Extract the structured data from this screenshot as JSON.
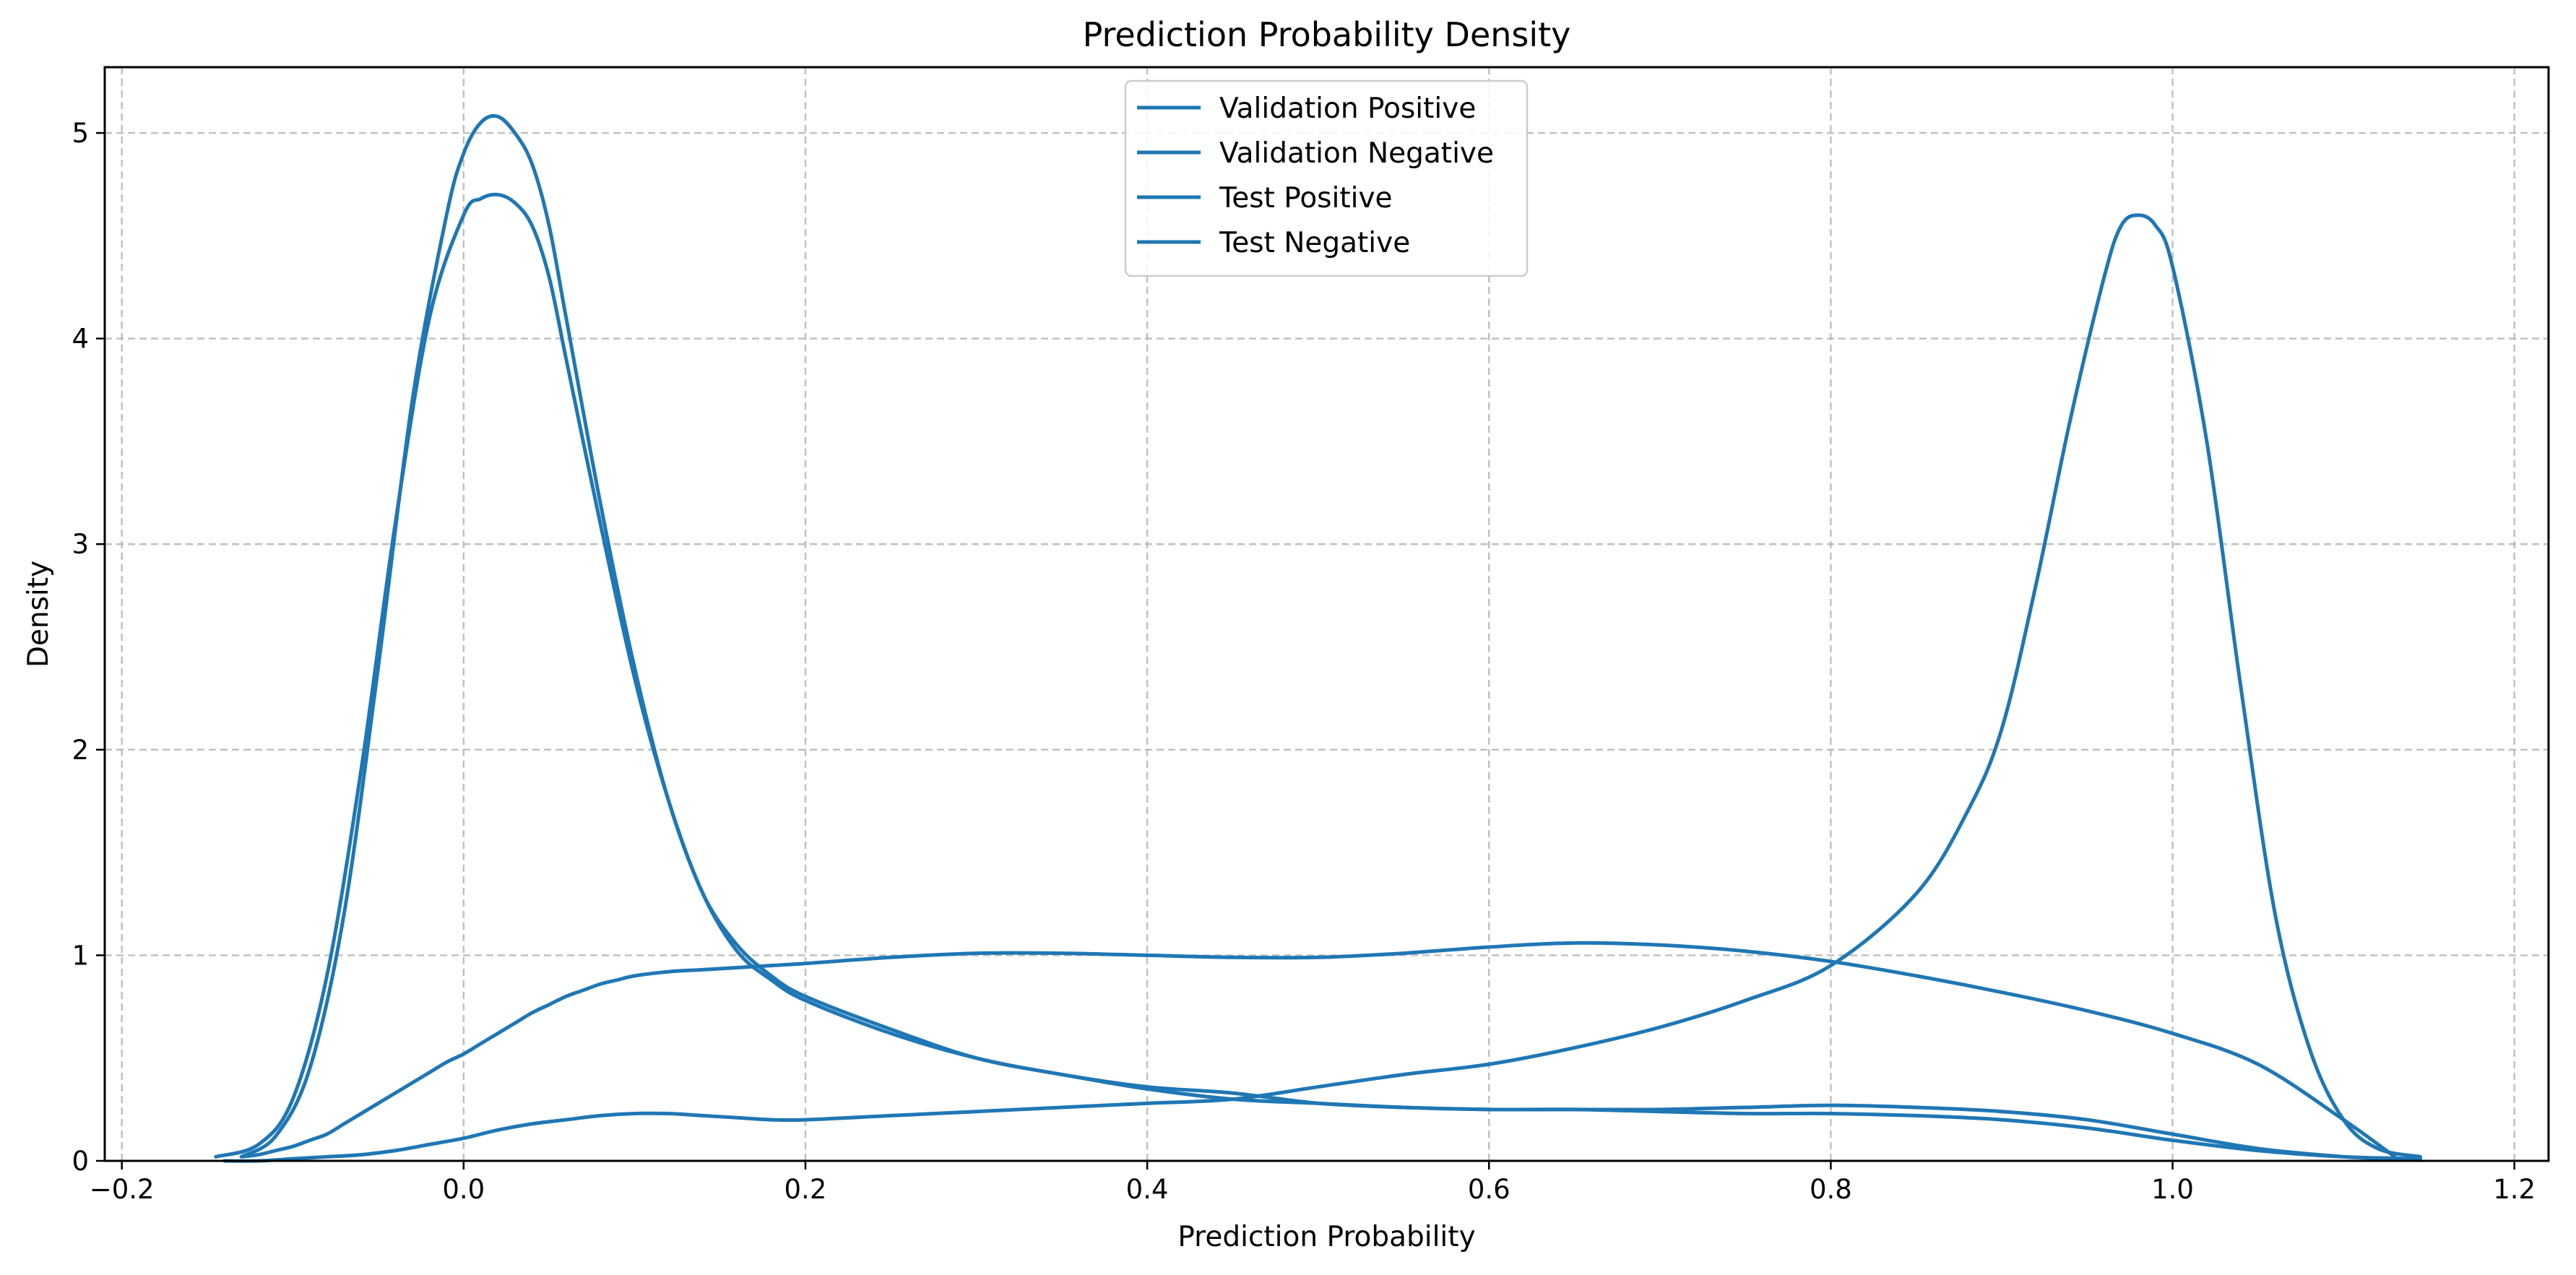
{
  "chart_data": {
    "type": "line",
    "title": "Prediction Probability Density",
    "xlabel": "Prediction Probability",
    "ylabel": "Density",
    "xlim": [
      -0.21,
      1.22
    ],
    "ylim": [
      0,
      5.32
    ],
    "xticks": [
      -0.2,
      0.0,
      0.2,
      0.4,
      0.6,
      0.8,
      1.0,
      1.2
    ],
    "xtick_labels": [
      "−0.2",
      "0.0",
      "0.2",
      "0.4",
      "0.6",
      "0.8",
      "1.0",
      "1.2"
    ],
    "yticks": [
      0,
      1,
      2,
      3,
      4,
      5
    ],
    "ytick_labels": [
      "0",
      "1",
      "2",
      "3",
      "4",
      "5"
    ],
    "grid": true,
    "legend_position": "top-center",
    "line_color": "#1f77b4",
    "series": [
      {
        "name": "Validation Positive",
        "x": [
          -0.13,
          -0.12,
          -0.11,
          -0.1,
          -0.09,
          -0.08,
          -0.07,
          -0.06,
          -0.05,
          -0.04,
          -0.03,
          -0.02,
          -0.01,
          0.0,
          0.01,
          0.02,
          0.03,
          0.04,
          0.05,
          0.06,
          0.07,
          0.08,
          0.09,
          0.1,
          0.12,
          0.14,
          0.16,
          0.18,
          0.2,
          0.25,
          0.3,
          0.35,
          0.4,
          0.45,
          0.5,
          0.55,
          0.6,
          0.65,
          0.7,
          0.75,
          0.8,
          0.85,
          0.9,
          0.95,
          1.0,
          1.05,
          1.1,
          1.13
        ],
        "y": [
          0.02,
          0.03,
          0.05,
          0.07,
          0.1,
          0.13,
          0.18,
          0.23,
          0.28,
          0.33,
          0.38,
          0.43,
          0.48,
          0.52,
          0.57,
          0.62,
          0.67,
          0.72,
          0.76,
          0.8,
          0.83,
          0.86,
          0.88,
          0.9,
          0.92,
          0.93,
          0.94,
          0.95,
          0.96,
          0.99,
          1.01,
          1.01,
          1.0,
          0.99,
          0.99,
          1.01,
          1.04,
          1.06,
          1.05,
          1.02,
          0.97,
          0.9,
          0.82,
          0.73,
          0.62,
          0.47,
          0.2,
          0.02
        ]
      },
      {
        "name": "Validation Negative",
        "x": [
          -0.145,
          -0.12,
          -0.1,
          -0.08,
          -0.06,
          -0.04,
          -0.02,
          0.0,
          0.01,
          0.02,
          0.03,
          0.04,
          0.05,
          0.06,
          0.08,
          0.1,
          0.12,
          0.14,
          0.16,
          0.18,
          0.2,
          0.25,
          0.3,
          0.35,
          0.4,
          0.45,
          0.5,
          0.55,
          0.6,
          0.65,
          0.7,
          0.75,
          0.8,
          0.85,
          0.9,
          0.95,
          1.0,
          1.05,
          1.1,
          1.145
        ],
        "y": [
          0.02,
          0.08,
          0.3,
          0.9,
          1.9,
          3.1,
          4.1,
          4.6,
          4.68,
          4.7,
          4.66,
          4.55,
          4.3,
          3.9,
          3.1,
          2.35,
          1.75,
          1.3,
          1.05,
          0.9,
          0.8,
          0.64,
          0.5,
          0.42,
          0.35,
          0.3,
          0.28,
          0.26,
          0.25,
          0.25,
          0.24,
          0.23,
          0.23,
          0.22,
          0.2,
          0.16,
          0.1,
          0.05,
          0.02,
          0.01
        ]
      },
      {
        "name": "Test Positive",
        "x": [
          -0.14,
          -0.12,
          -0.1,
          -0.08,
          -0.06,
          -0.04,
          -0.02,
          0.0,
          0.02,
          0.04,
          0.06,
          0.08,
          0.1,
          0.12,
          0.14,
          0.16,
          0.18,
          0.2,
          0.25,
          0.3,
          0.35,
          0.4,
          0.45,
          0.5,
          0.55,
          0.6,
          0.65,
          0.7,
          0.75,
          0.8,
          0.85,
          0.88,
          0.9,
          0.92,
          0.94,
          0.96,
          0.97,
          0.98,
          0.99,
          1.0,
          1.02,
          1.04,
          1.06,
          1.08,
          1.1,
          1.12,
          1.145
        ],
        "y": [
          0.0,
          0.0,
          0.01,
          0.02,
          0.03,
          0.05,
          0.08,
          0.11,
          0.15,
          0.18,
          0.2,
          0.22,
          0.23,
          0.23,
          0.22,
          0.21,
          0.2,
          0.2,
          0.22,
          0.24,
          0.26,
          0.28,
          0.3,
          0.36,
          0.42,
          0.47,
          0.55,
          0.65,
          0.78,
          0.95,
          1.3,
          1.7,
          2.1,
          2.8,
          3.6,
          4.3,
          4.55,
          4.6,
          4.55,
          4.35,
          3.5,
          2.3,
          1.2,
          0.55,
          0.2,
          0.06,
          0.02
        ]
      },
      {
        "name": "Test Negative",
        "x": [
          -0.13,
          -0.11,
          -0.09,
          -0.07,
          -0.05,
          -0.03,
          -0.01,
          0.0,
          0.01,
          0.02,
          0.03,
          0.04,
          0.05,
          0.06,
          0.08,
          0.1,
          0.12,
          0.14,
          0.16,
          0.18,
          0.2,
          0.25,
          0.3,
          0.35,
          0.4,
          0.45,
          0.5,
          0.55,
          0.6,
          0.65,
          0.7,
          0.75,
          0.8,
          0.85,
          0.9,
          0.95,
          1.0,
          1.05,
          1.1,
          1.13
        ],
        "y": [
          0.02,
          0.12,
          0.45,
          1.2,
          2.4,
          3.7,
          4.6,
          4.9,
          5.05,
          5.08,
          5.0,
          4.85,
          4.55,
          4.1,
          3.2,
          2.4,
          1.75,
          1.3,
          1.02,
          0.88,
          0.78,
          0.62,
          0.5,
          0.42,
          0.36,
          0.33,
          0.28,
          0.26,
          0.25,
          0.25,
          0.25,
          0.26,
          0.27,
          0.26,
          0.24,
          0.2,
          0.13,
          0.06,
          0.02,
          0.01
        ]
      }
    ]
  }
}
